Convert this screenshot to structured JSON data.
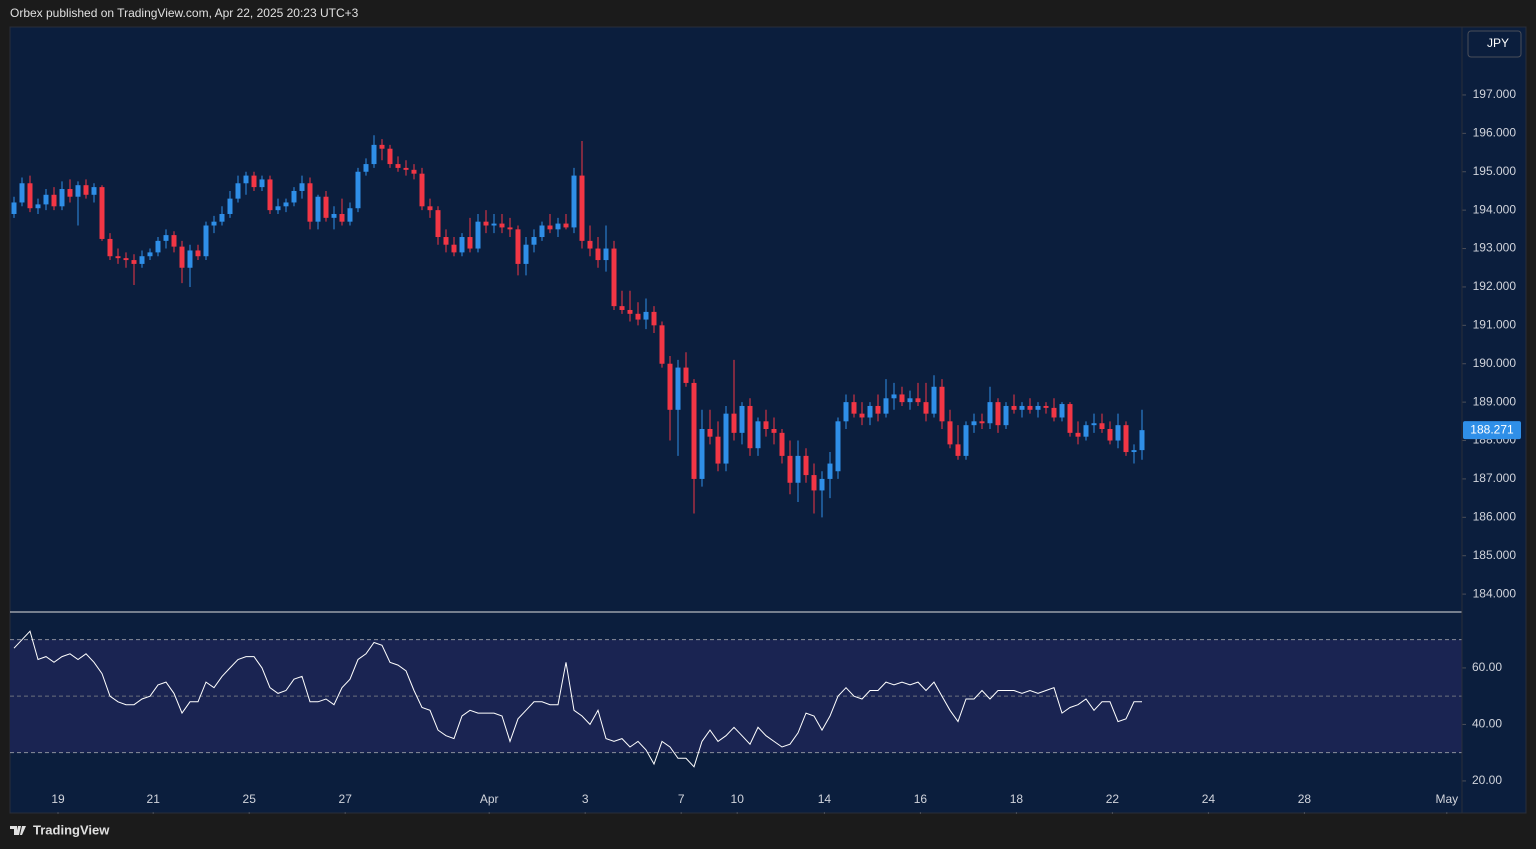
{
  "header": {
    "attribution": "Orbex published on TradingView.com, Apr 22, 2025 20:23 UTC+3"
  },
  "footer": {
    "brand": "TradingView"
  },
  "chart_data": [
    {
      "type": "candlestick",
      "currency": "JPY",
      "up_color": "#2f8fe8",
      "down_color": "#f23645",
      "last_price": 188.271,
      "ylim": [
        183.56,
        198.77
      ],
      "yticks": [
        {
          "value": 184,
          "label": "184.000"
        },
        {
          "value": 185,
          "label": "185.000"
        },
        {
          "value": 186,
          "label": "186.000"
        },
        {
          "value": 187,
          "label": "187.000"
        },
        {
          "value": 188,
          "label": "188.000"
        },
        {
          "value": 189,
          "label": "189.000"
        },
        {
          "value": 190,
          "label": "190.000"
        },
        {
          "value": 191,
          "label": "191.000"
        },
        {
          "value": 192,
          "label": "192.000"
        },
        {
          "value": 193,
          "label": "193.000"
        },
        {
          "value": 194,
          "label": "194.000"
        },
        {
          "value": 195,
          "label": "195.000"
        },
        {
          "value": 196,
          "label": "196.000"
        },
        {
          "value": 197,
          "label": "197.000"
        }
      ],
      "xlim": [
        -0.5,
        181
      ],
      "xticks": [
        {
          "value": 5.5,
          "label": "19"
        },
        {
          "value": 17.4,
          "label": "21"
        },
        {
          "value": 29.4,
          "label": "25"
        },
        {
          "value": 41.4,
          "label": "27"
        },
        {
          "value": 59.4,
          "label": "Apr"
        },
        {
          "value": 71.4,
          "label": "3"
        },
        {
          "value": 83.4,
          "label": "7"
        },
        {
          "value": 90.4,
          "label": "10"
        },
        {
          "value": 101.3,
          "label": "14"
        },
        {
          "value": 113.3,
          "label": "16"
        },
        {
          "value": 125.3,
          "label": "18"
        },
        {
          "value": 137.3,
          "label": "22"
        },
        {
          "value": 149.3,
          "label": "24"
        },
        {
          "value": 161.3,
          "label": "28"
        },
        {
          "value": 179.1,
          "label": "May"
        }
      ],
      "candles": [
        [
          193.9,
          194.35,
          193.8,
          194.2
        ],
        [
          194.2,
          194.85,
          194.1,
          194.7
        ],
        [
          194.7,
          194.9,
          193.95,
          194.05
        ],
        [
          194.05,
          194.3,
          193.9,
          194.15
        ],
        [
          194.15,
          194.55,
          194.0,
          194.4
        ],
        [
          194.4,
          194.6,
          194.0,
          194.1
        ],
        [
          194.1,
          194.75,
          194.0,
          194.55
        ],
        [
          194.55,
          194.8,
          194.2,
          194.35
        ],
        [
          194.35,
          194.75,
          193.6,
          194.65
        ],
        [
          194.65,
          194.8,
          194.3,
          194.4
        ],
        [
          194.4,
          194.7,
          194.2,
          194.6
        ],
        [
          194.6,
          194.65,
          193.2,
          193.25
        ],
        [
          193.25,
          193.4,
          192.7,
          192.8
        ],
        [
          192.8,
          193.0,
          192.6,
          192.75
        ],
        [
          192.75,
          192.9,
          192.5,
          192.7
        ],
        [
          192.7,
          192.85,
          192.05,
          192.6
        ],
        [
          192.6,
          192.95,
          192.5,
          192.8
        ],
        [
          192.8,
          193.0,
          192.7,
          192.9
        ],
        [
          192.9,
          193.3,
          192.8,
          193.2
        ],
        [
          193.2,
          193.5,
          193.0,
          193.35
        ],
        [
          193.35,
          193.45,
          192.9,
          193.05
        ],
        [
          193.05,
          193.2,
          192.1,
          192.5
        ],
        [
          192.5,
          193.1,
          192.0,
          192.95
        ],
        [
          192.95,
          193.1,
          192.7,
          192.8
        ],
        [
          192.8,
          193.7,
          192.7,
          193.6
        ],
        [
          193.6,
          193.85,
          193.4,
          193.7
        ],
        [
          193.7,
          194.1,
          193.6,
          193.9
        ],
        [
          193.9,
          194.5,
          193.8,
          194.3
        ],
        [
          194.3,
          194.9,
          194.2,
          194.7
        ],
        [
          194.7,
          195.0,
          194.4,
          194.9
        ],
        [
          194.9,
          195.0,
          194.5,
          194.6
        ],
        [
          194.6,
          194.9,
          194.5,
          194.8
        ],
        [
          194.8,
          194.9,
          193.9,
          194.0
        ],
        [
          194.0,
          194.3,
          193.9,
          194.1
        ],
        [
          194.1,
          194.3,
          193.95,
          194.2
        ],
        [
          194.2,
          194.6,
          194.1,
          194.5
        ],
        [
          194.5,
          194.9,
          194.3,
          194.7
        ],
        [
          194.7,
          194.85,
          193.5,
          193.7
        ],
        [
          193.7,
          194.4,
          193.5,
          194.35
        ],
        [
          194.35,
          194.5,
          193.7,
          193.8
        ],
        [
          193.8,
          194.1,
          193.5,
          193.9
        ],
        [
          193.9,
          194.3,
          193.6,
          193.7
        ],
        [
          193.7,
          194.2,
          193.6,
          194.05
        ],
        [
          194.05,
          195.1,
          193.95,
          195.0
        ],
        [
          195.0,
          195.35,
          194.9,
          195.2
        ],
        [
          195.2,
          195.95,
          195.1,
          195.7
        ],
        [
          195.7,
          195.85,
          195.3,
          195.6
        ],
        [
          195.6,
          195.7,
          195.1,
          195.2
        ],
        [
          195.2,
          195.4,
          195.0,
          195.1
        ],
        [
          195.1,
          195.3,
          194.9,
          195.05
        ],
        [
          195.05,
          195.2,
          194.8,
          194.95
        ],
        [
          194.95,
          195.1,
          194.0,
          194.1
        ],
        [
          194.1,
          194.3,
          193.8,
          194.0
        ],
        [
          194.0,
          194.1,
          193.1,
          193.3
        ],
        [
          193.3,
          193.5,
          192.9,
          193.1
        ],
        [
          193.1,
          193.3,
          192.8,
          192.9
        ],
        [
          192.9,
          193.4,
          192.8,
          193.3
        ],
        [
          193.3,
          193.8,
          192.9,
          193.0
        ],
        [
          193.0,
          193.9,
          192.9,
          193.7
        ],
        [
          193.7,
          194.0,
          193.4,
          193.6
        ],
        [
          193.6,
          193.9,
          193.4,
          193.65
        ],
        [
          193.65,
          193.9,
          193.4,
          193.55
        ],
        [
          193.55,
          193.8,
          193.3,
          193.5
        ],
        [
          193.5,
          193.6,
          192.3,
          192.6
        ],
        [
          192.6,
          193.3,
          192.3,
          193.1
        ],
        [
          193.1,
          193.5,
          192.9,
          193.3
        ],
        [
          193.3,
          193.7,
          193.2,
          193.6
        ],
        [
          193.6,
          193.9,
          193.4,
          193.5
        ],
        [
          193.5,
          193.8,
          193.3,
          193.65
        ],
        [
          193.65,
          193.9,
          193.5,
          193.55
        ],
        [
          193.55,
          195.1,
          193.4,
          194.9
        ],
        [
          194.9,
          195.8,
          193.0,
          193.2
        ],
        [
          193.2,
          193.6,
          192.8,
          193.0
        ],
        [
          193.0,
          193.3,
          192.5,
          192.7
        ],
        [
          192.7,
          193.6,
          192.4,
          193.0
        ],
        [
          193.0,
          193.2,
          191.4,
          191.5
        ],
        [
          191.5,
          191.9,
          191.3,
          191.4
        ],
        [
          191.4,
          191.9,
          191.1,
          191.3
        ],
        [
          191.3,
          191.6,
          191.0,
          191.15
        ],
        [
          191.15,
          191.7,
          190.9,
          191.35
        ],
        [
          191.35,
          191.5,
          190.8,
          191.0
        ],
        [
          191.0,
          191.1,
          189.9,
          190.0
        ],
        [
          190.0,
          190.2,
          188.0,
          188.8
        ],
        [
          188.8,
          190.1,
          187.6,
          189.9
        ],
        [
          189.9,
          190.3,
          189.4,
          189.5
        ],
        [
          189.5,
          189.6,
          186.1,
          187.0
        ],
        [
          187.0,
          188.8,
          186.8,
          188.3
        ],
        [
          188.3,
          188.8,
          187.9,
          188.1
        ],
        [
          188.1,
          188.5,
          187.2,
          187.4
        ],
        [
          187.4,
          188.9,
          187.2,
          188.7
        ],
        [
          188.7,
          190.1,
          188.0,
          188.2
        ],
        [
          188.2,
          189.0,
          187.9,
          188.9
        ],
        [
          188.9,
          189.1,
          187.6,
          187.8
        ],
        [
          187.8,
          188.6,
          187.6,
          188.5
        ],
        [
          188.5,
          188.8,
          188.1,
          188.3
        ],
        [
          188.3,
          188.6,
          187.9,
          188.2
        ],
        [
          188.2,
          188.3,
          187.4,
          187.6
        ],
        [
          187.6,
          188.0,
          186.6,
          186.9
        ],
        [
          186.9,
          188.0,
          186.4,
          187.6
        ],
        [
          187.6,
          187.8,
          186.9,
          187.1
        ],
        [
          187.1,
          187.4,
          186.1,
          186.7
        ],
        [
          186.7,
          187.2,
          186.0,
          187.0
        ],
        [
          187.0,
          187.7,
          186.5,
          187.4
        ],
        [
          187.2,
          188.6,
          187.0,
          188.5
        ],
        [
          188.5,
          189.2,
          188.3,
          189.0
        ],
        [
          189.0,
          189.2,
          188.6,
          188.7
        ],
        [
          188.7,
          189.0,
          188.4,
          188.6
        ],
        [
          188.6,
          189.0,
          188.4,
          188.9
        ],
        [
          188.9,
          189.2,
          188.5,
          188.7
        ],
        [
          188.7,
          189.6,
          188.6,
          189.1
        ],
        [
          189.1,
          189.5,
          188.8,
          189.2
        ],
        [
          189.2,
          189.4,
          188.9,
          189.0
        ],
        [
          189.0,
          189.3,
          188.8,
          189.1
        ],
        [
          189.1,
          189.5,
          188.9,
          189.0
        ],
        [
          189.0,
          189.5,
          188.5,
          188.7
        ],
        [
          188.7,
          189.7,
          188.6,
          189.4
        ],
        [
          189.4,
          189.6,
          188.3,
          188.5
        ],
        [
          188.5,
          188.8,
          187.8,
          187.9
        ],
        [
          187.9,
          188.4,
          187.5,
          187.6
        ],
        [
          187.6,
          188.5,
          187.5,
          188.4
        ],
        [
          188.4,
          188.7,
          188.2,
          188.5
        ],
        [
          188.5,
          188.7,
          188.3,
          188.45
        ],
        [
          188.45,
          189.4,
          188.3,
          189.0
        ],
        [
          189.0,
          189.1,
          188.2,
          188.4
        ],
        [
          188.4,
          189.0,
          188.3,
          188.9
        ],
        [
          188.9,
          189.2,
          188.7,
          188.8
        ],
        [
          188.8,
          189.0,
          188.6,
          188.9
        ],
        [
          188.9,
          189.1,
          188.7,
          188.8
        ],
        [
          188.8,
          189.0,
          188.6,
          188.9
        ],
        [
          188.9,
          189.0,
          188.7,
          188.85
        ],
        [
          188.85,
          189.1,
          188.5,
          188.6
        ],
        [
          188.6,
          189.0,
          188.5,
          188.95
        ],
        [
          188.95,
          189.0,
          188.1,
          188.2
        ],
        [
          188.2,
          188.5,
          187.9,
          188.1
        ],
        [
          188.1,
          188.5,
          188.0,
          188.4
        ],
        [
          188.4,
          188.7,
          188.2,
          188.45
        ],
        [
          188.45,
          188.7,
          188.2,
          188.3
        ],
        [
          188.3,
          188.5,
          187.9,
          188.0
        ],
        [
          188.0,
          188.7,
          187.8,
          188.4
        ],
        [
          188.4,
          188.5,
          187.6,
          187.7
        ],
        [
          187.7,
          187.9,
          187.4,
          187.75
        ],
        [
          187.75,
          188.8,
          187.5,
          188.27
        ]
      ]
    },
    {
      "type": "line",
      "color": "#ffffff",
      "band_color": "#1a2452",
      "ylim": [
        9,
        79.8
      ],
      "band": [
        30,
        70
      ],
      "midline": 50,
      "yticks": [
        {
          "value": 20,
          "label": "20.00"
        },
        {
          "value": 40,
          "label": "40.00"
        },
        {
          "value": 60,
          "label": "60.00"
        }
      ],
      "values": [
        67,
        70,
        73,
        63,
        64,
        62,
        64,
        65,
        63,
        65,
        62,
        58,
        50,
        48,
        47,
        47,
        49,
        50,
        54,
        55,
        51,
        44,
        48,
        48,
        55,
        53,
        57,
        60,
        63,
        64,
        64,
        60,
        53,
        51,
        52,
        56,
        57,
        48,
        48,
        49,
        47,
        53,
        56,
        63,
        65,
        69,
        68,
        62,
        61,
        59,
        52,
        46,
        45,
        38,
        36,
        35,
        43,
        45,
        44,
        44,
        44,
        43,
        34,
        42,
        45,
        48,
        48,
        47,
        47,
        62,
        45,
        43,
        40,
        45,
        35,
        34,
        35,
        32,
        34,
        31,
        26,
        34,
        32,
        28,
        28,
        25,
        34,
        38,
        34,
        36,
        39,
        36,
        33,
        39,
        36,
        34,
        32,
        33,
        37,
        44,
        43,
        38,
        43,
        50,
        53,
        50,
        49,
        52,
        52,
        55,
        54,
        55,
        54,
        55,
        52,
        55,
        50,
        45,
        41,
        49,
        49,
        52,
        49,
        52,
        52,
        52,
        51,
        52,
        51,
        52,
        53,
        44,
        46,
        47,
        49,
        45,
        48,
        48,
        41,
        42,
        48,
        48
      ]
    }
  ]
}
